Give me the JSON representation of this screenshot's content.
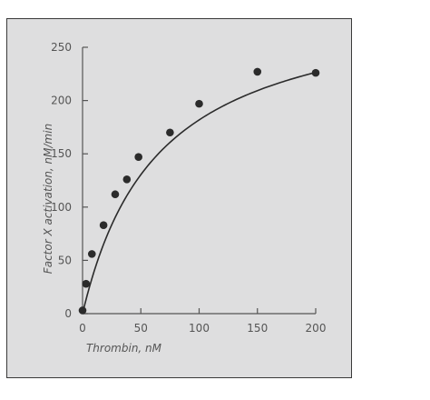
{
  "chart_data": {
    "type": "scatter",
    "title": "",
    "xlabel": "Thrombin, nM",
    "ylabel": "Factor X activation, nM/min",
    "xlim": [
      0,
      200
    ],
    "ylim": [
      0,
      250
    ],
    "x_ticks": [
      0,
      50,
      100,
      150,
      200
    ],
    "y_ticks": [
      0,
      50,
      100,
      150,
      200,
      250
    ],
    "grid": false,
    "series": [
      {
        "x": [
          0,
          3,
          8,
          18,
          28,
          38,
          48,
          75,
          100,
          150,
          200
        ],
        "y": [
          3,
          28,
          56,
          83,
          112,
          126,
          147,
          170,
          197,
          227,
          226
        ]
      }
    ],
    "fit_curve": {
      "type": "hyperbolic",
      "vmax": 300,
      "km": 65
    },
    "colors": {
      "panel_background": "#dededf",
      "panel_border": "#3a3a3a",
      "axis": "#555555",
      "markers": "#2b2b2b",
      "curve": "#2b2b2b"
    }
  }
}
